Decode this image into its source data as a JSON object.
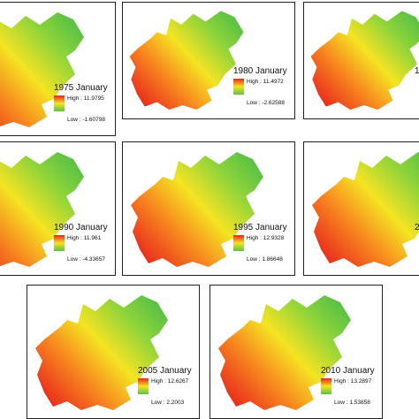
{
  "panels": [
    {
      "label": "1975 January",
      "high": "High : 11.9795",
      "low": "Low : -1.60798"
    },
    {
      "label": "1980 January",
      "high": "High : 11.4972",
      "low": "Low : -2.62588"
    },
    {
      "label": "1"
    },
    {
      "label": "1990 January",
      "high": "High : 11.961",
      "low": "Low : -4.33657"
    },
    {
      "label": "1995 January",
      "high": "High : 12.9328",
      "low": "Low : 1.86648"
    },
    {
      "label": "2"
    },
    {
      "label": "2005 January",
      "high": "High : 12.6267",
      "low": "Low : 2.2003"
    },
    {
      "label": "2010 January",
      "high": "High : 13.2897",
      "low": "Low : 1.53858"
    }
  ]
}
